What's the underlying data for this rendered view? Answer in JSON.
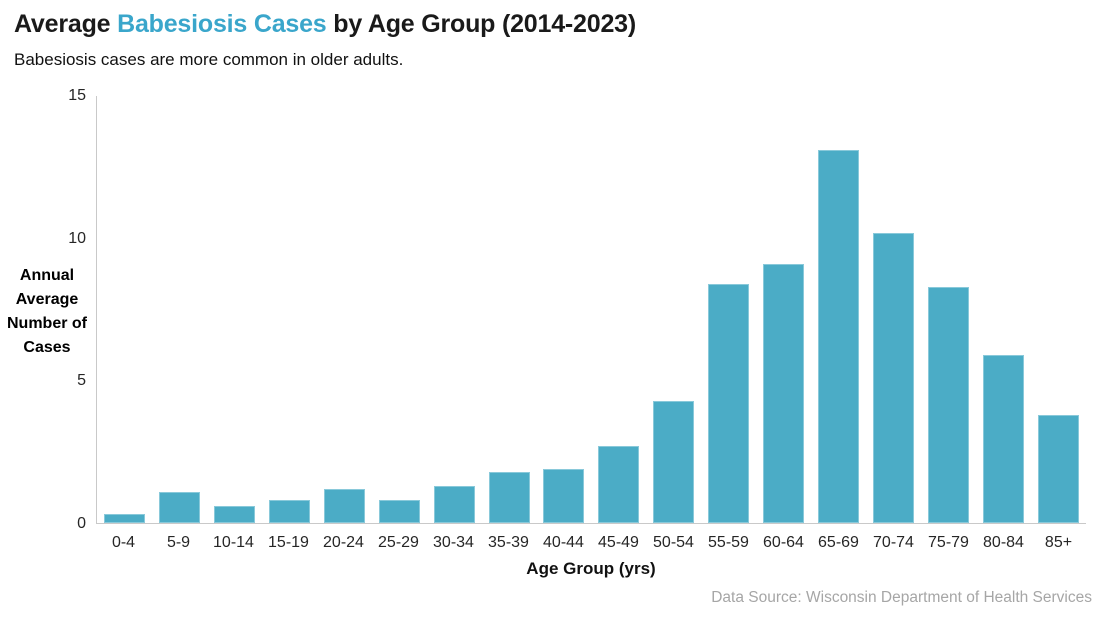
{
  "header": {
    "title_part1": "Average ",
    "title_part2": "Babesiosis Cases",
    "title_part3": " by Age Group (2014-2023)",
    "subtitle": "Babesiosis cases are more common in older adults."
  },
  "chart_data": {
    "type": "bar",
    "title": "Average Babesiosis Cases by Age Group (2014-2023)",
    "subtitle": "Babesiosis cases are more common in older adults.",
    "categories": [
      "0-4",
      "5-9",
      "10-14",
      "15-19",
      "20-24",
      "25-29",
      "30-34",
      "35-39",
      "40-44",
      "45-49",
      "50-54",
      "55-59",
      "60-64",
      "65-69",
      "70-74",
      "75-79",
      "80-84",
      "85+"
    ],
    "values": [
      0.3,
      1.1,
      0.6,
      0.8,
      1.2,
      0.8,
      1.3,
      1.8,
      1.9,
      2.7,
      4.3,
      8.4,
      9.1,
      13.1,
      10.2,
      8.3,
      5.9,
      3.8
    ],
    "xlabel": "Age Group (yrs)",
    "ylabel": "Annual Average Number of Cases",
    "ylabel_lines": [
      "Annual",
      "Average",
      "Number of",
      "Cases"
    ],
    "yticks": [
      0,
      5,
      10,
      15
    ],
    "ylim": [
      0,
      15
    ],
    "grid": false,
    "legend": null,
    "bar_color": "#4BACC6"
  },
  "footer": {
    "source": "Data Source: Wisconsin Department of Health Services"
  },
  "colors": {
    "accent": "#3AA6CB",
    "bar": "#4BACC6",
    "axis": "#C9C9C9",
    "source_text": "#A6A6A6"
  }
}
